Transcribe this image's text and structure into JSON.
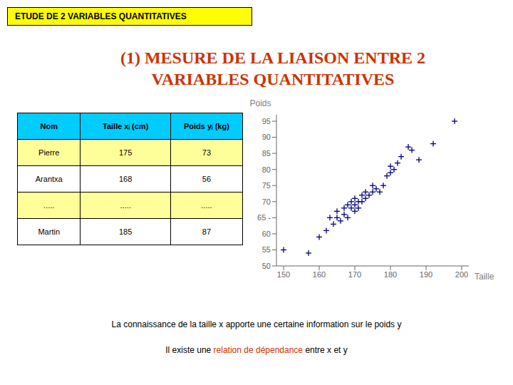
{
  "chart_data": {
    "type": "scatter",
    "title": "(1) MESURE DE LA LIAISON ENTRE 2 VARIABLES QUANTITATIVES",
    "title_color": "#cc3300",
    "header": {
      "text": "ETUDE DE 2 VARIABLES QUANTITATIVES",
      "color": "#ffff00"
    },
    "table": {
      "columns": [
        "Nom",
        "Taille xᵢ  (cm)",
        "Poids yᵢ  (kg)"
      ],
      "rows": [
        [
          "Pierre",
          "175",
          "73"
        ],
        [
          "Arantxa",
          "168",
          "56"
        ],
        [
          ".....",
          ".....",
          "....."
        ],
        [
          "Martin",
          "185",
          "87"
        ]
      ],
      "colors": [
        "#00ccff",
        "#ffff99",
        "#ffffff",
        "#ffff99",
        "#ffffff"
      ]
    },
    "x": [
      150,
      157,
      160,
      162,
      163,
      164,
      165,
      165,
      166,
      167,
      167,
      168,
      168,
      169,
      169,
      170,
      170,
      170,
      171,
      171,
      172,
      172,
      173,
      173,
      174,
      175,
      175,
      176,
      177,
      178,
      179,
      180,
      180,
      181,
      182,
      183,
      185,
      186,
      188,
      192,
      198
    ],
    "values": [
      55,
      54,
      59,
      61,
      65,
      63,
      65,
      67,
      64,
      66,
      68,
      65,
      69,
      68,
      70,
      67,
      69,
      71,
      70,
      68,
      72,
      70,
      71,
      73,
      72,
      73,
      75,
      74,
      73,
      75,
      78,
      79,
      81,
      80,
      82,
      84,
      87,
      86,
      83,
      88,
      95
    ],
    "color": "#000080",
    "marker": "+",
    "x_label": "Taille",
    "y_label": "Poids",
    "xlim": [
      148,
      202
    ],
    "ylim": [
      50,
      97
    ],
    "xticks": [
      150,
      160,
      170,
      180,
      190,
      200
    ],
    "yticks": [
      50,
      55,
      60,
      {
        "value": 65,
        "label": "65 -"
      },
      70,
      75,
      80,
      85,
      90,
      95
    ],
    "grid": false,
    "annotations": [
      {
        "parts": [
          {
            "text": "La connaissance de la taille x apporte une certaine information sur le poids y"
          }
        ]
      },
      {
        "parts": [
          {
            "text": "Il existe une "
          },
          {
            "text": "relation de dépendance",
            "color": "#cc3300"
          },
          {
            "text": " entre x et y"
          }
        ]
      }
    ]
  }
}
